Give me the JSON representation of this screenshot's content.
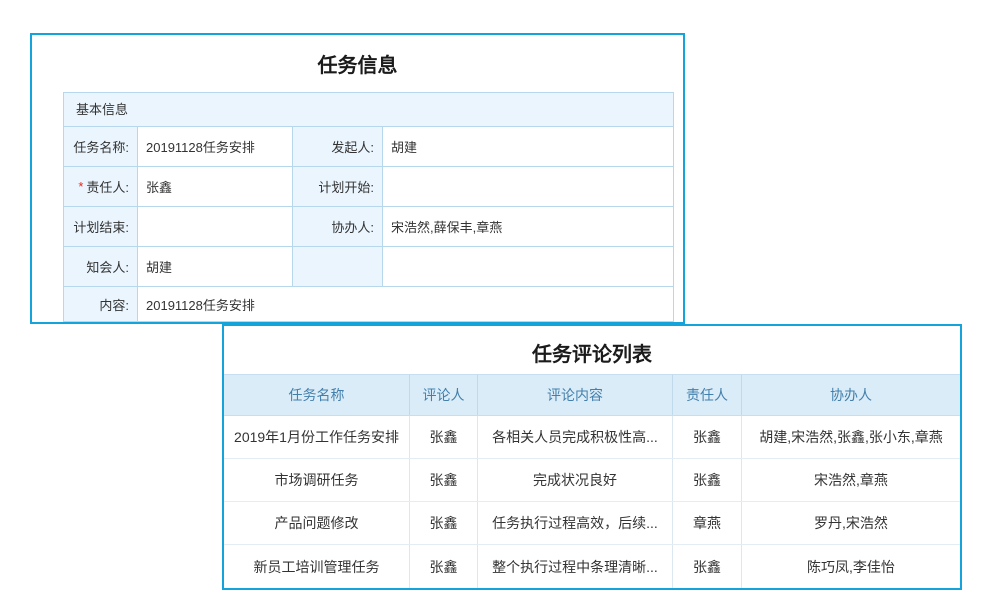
{
  "colors": {
    "accent_border": "#14a3db",
    "link_blue": "#3c8ce6",
    "label_bg": "#eaf5fd",
    "header_bg": "#d9ecf8",
    "required_red": "#e02b20"
  },
  "task_info_panel": {
    "title": "任务信息",
    "section_header": "基本信息",
    "required_marker": "*",
    "rows": [
      {
        "label1": "任务名称:",
        "value1": "20191128任务安排",
        "label2": "发起人:",
        "value2": "胡建"
      },
      {
        "label1": "责任人:",
        "value1": "张鑫",
        "label2": "计划开始:",
        "value2": ""
      },
      {
        "label1": "计划结束:",
        "value1": "",
        "label2": "协办人:",
        "value2": "宋浩然,薛保丰,章燕"
      },
      {
        "label1": "知会人:",
        "value1": "胡建",
        "label2": "",
        "value2": ""
      }
    ],
    "content_row": {
      "label": "内容:",
      "value": "20191128任务安排"
    }
  },
  "comment_panel": {
    "title": "任务评论列表",
    "columns": [
      "任务名称",
      "评论人",
      "评论内容",
      "责任人",
      "协办人"
    ],
    "rows": [
      {
        "task_name": "2019年1月份工作任务安排",
        "commenter": "张鑫",
        "comment": "各相关人员完成积极性高...",
        "owner": "张鑫",
        "collaborators": "胡建,宋浩然,张鑫,张小东,章燕"
      },
      {
        "task_name": "市场调研任务",
        "commenter": "张鑫",
        "comment": "完成状况良好",
        "owner": "张鑫",
        "collaborators": "宋浩然,章燕"
      },
      {
        "task_name": "产品问题修改",
        "commenter": "张鑫",
        "comment": "任务执行过程高效，后续...",
        "owner": "章燕",
        "collaborators": "罗丹,宋浩然"
      },
      {
        "task_name": "新员工培训管理任务",
        "commenter": "张鑫",
        "comment": "整个执行过程中条理清晰...",
        "owner": "张鑫",
        "collaborators": "陈巧凤,李佳怡"
      }
    ]
  }
}
